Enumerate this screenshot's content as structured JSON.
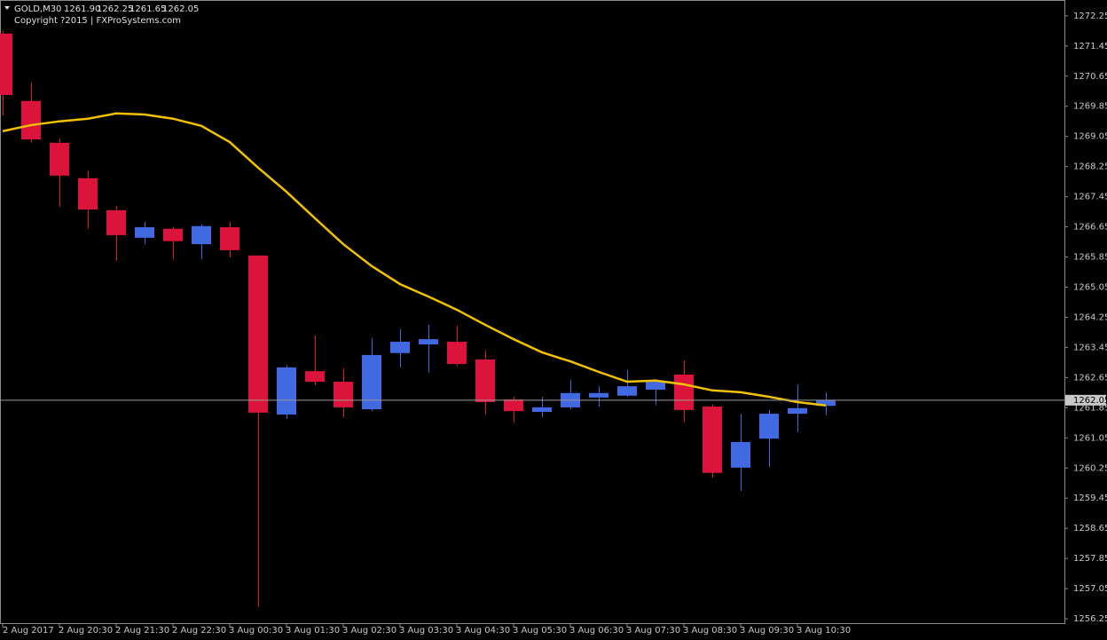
{
  "header": {
    "symbol": "GOLD,M30",
    "quote": [
      "1261.90",
      "1262.25",
      "1261.65",
      "1262.05"
    ],
    "copyright": "Copyright ?2015 | FXProSystems.com"
  },
  "chart_data": {
    "type": "candlestick",
    "categories": [
      "2 Aug 2017",
      null,
      "2 Aug 20:30",
      null,
      "2 Aug 21:30",
      null,
      "2 Aug 22:30",
      null,
      "3 Aug 00:30",
      null,
      "3 Aug 01:30",
      null,
      "3 Aug 02:30",
      null,
      "3 Aug 03:30",
      null,
      "3 Aug 04:30",
      null,
      "3 Aug 05:30",
      null,
      "3 Aug 06:30",
      null,
      "3 Aug 07:30",
      null,
      "3 Aug 08:30",
      null,
      "3 Aug 09:30",
      null,
      "3 Aug 10:30",
      null
    ],
    "open": [
      1271.78,
      1269.99,
      1268.88,
      1267.94,
      1267.09,
      1266.36,
      1266.6,
      1266.19,
      1266.64,
      1265.89,
      1261.67,
      1262.82,
      1262.54,
      1261.81,
      1263.3,
      1263.53,
      1263.6,
      1263.13,
      1262.07,
      1261.74,
      1261.86,
      1262.12,
      1262.17,
      1262.33,
      1262.73,
      1261.88,
      1260.26,
      1261.03,
      1261.69,
      1261.9
    ],
    "high": [
      1271.85,
      1270.48,
      1269.0,
      1268.13,
      1267.2,
      1266.78,
      1266.65,
      1266.72,
      1266.78,
      1265.89,
      1262.98,
      1263.77,
      1262.9,
      1263.7,
      1263.93,
      1264.05,
      1264.03,
      1263.37,
      1262.14,
      1262.14,
      1262.59,
      1262.42,
      1262.85,
      1262.61,
      1263.11,
      1261.95,
      1261.69,
      1261.79,
      1262.47,
      1262.25
    ],
    "low": [
      1269.61,
      1268.88,
      1267.18,
      1266.6,
      1265.75,
      1266.19,
      1265.77,
      1265.79,
      1265.84,
      1256.56,
      1261.55,
      1262.45,
      1261.6,
      1261.76,
      1262.92,
      1262.78,
      1262.96,
      1261.67,
      1261.44,
      1261.6,
      1261.81,
      1261.88,
      1262.14,
      1261.91,
      1261.46,
      1260.0,
      1259.64,
      1260.28,
      1261.2,
      1261.65
    ],
    "close": [
      1270.15,
      1268.97,
      1268.01,
      1267.11,
      1266.43,
      1266.64,
      1266.27,
      1266.67,
      1266.03,
      1261.72,
      1262.92,
      1262.54,
      1261.86,
      1263.25,
      1263.6,
      1263.67,
      1263.01,
      1262.0,
      1261.76,
      1261.86,
      1262.24,
      1262.24,
      1262.42,
      1262.54,
      1261.79,
      1260.12,
      1260.94,
      1261.69,
      1261.84,
      1262.05
    ],
    "up_color": "#4169e1",
    "down_color": "#dc143c",
    "ma": {
      "color": "#f2c200",
      "values": [
        1269.19,
        1269.35,
        1269.45,
        1269.52,
        1269.66,
        1269.63,
        1269.52,
        1269.33,
        1268.9,
        1268.22,
        1267.58,
        1266.88,
        1266.19,
        1265.61,
        1265.13,
        1264.8,
        1264.45,
        1264.05,
        1263.67,
        1263.32,
        1263.08,
        1262.8,
        1262.54,
        1262.57,
        1262.47,
        1262.31,
        1262.26,
        1262.14,
        1262.0,
        1261.91
      ]
    },
    "current_price": 1262.05,
    "ylim": [
      1256.11,
      1272.67
    ],
    "yticks": [
      1272.25,
      1271.45,
      1270.65,
      1269.85,
      1269.05,
      1268.25,
      1267.45,
      1266.65,
      1265.85,
      1265.05,
      1264.25,
      1263.45,
      1262.65,
      1261.85,
      1261.05,
      1260.25,
      1259.45,
      1258.65,
      1257.85,
      1257.05,
      1256.25
    ],
    "grid": false
  }
}
